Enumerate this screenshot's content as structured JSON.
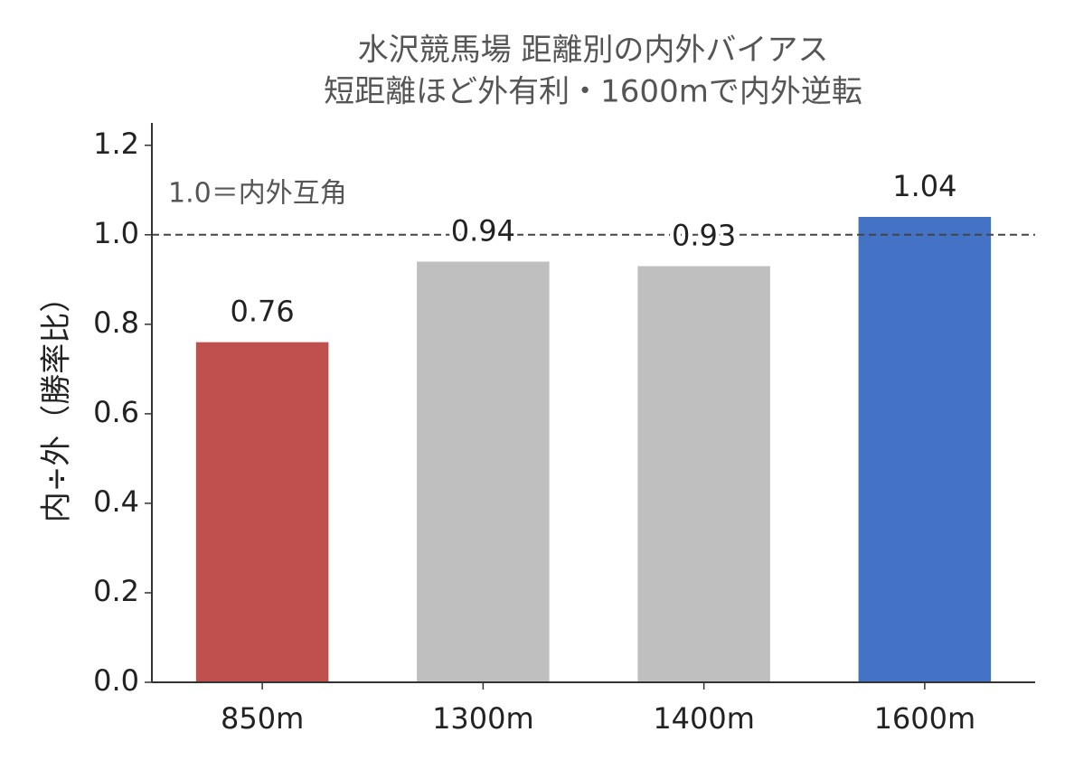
{
  "chart_data": {
    "type": "bar",
    "title": "水沢競馬場 距離別の内外バイアス",
    "subtitle": "短距離ほど外有利・1600mで内外逆転",
    "y_label": "内÷外（勝率比）",
    "categories": [
      "850m",
      "1300m",
      "1400m",
      "1600m"
    ],
    "values": [
      0.76,
      0.94,
      0.93,
      1.04
    ],
    "colors": [
      "#c0504d",
      "#bfbfbf",
      "#bfbfbf",
      "#4472c4"
    ],
    "ylim": [
      0,
      1.25
    ],
    "yticks": [
      {
        "value": 0,
        "label": "0.0"
      },
      0.2,
      0.4,
      0.6,
      0.8,
      {
        "value": 1,
        "label": "1.0"
      },
      1.2
    ],
    "reference_line": {
      "value": 1,
      "label": "1.0＝内外互角"
    }
  }
}
